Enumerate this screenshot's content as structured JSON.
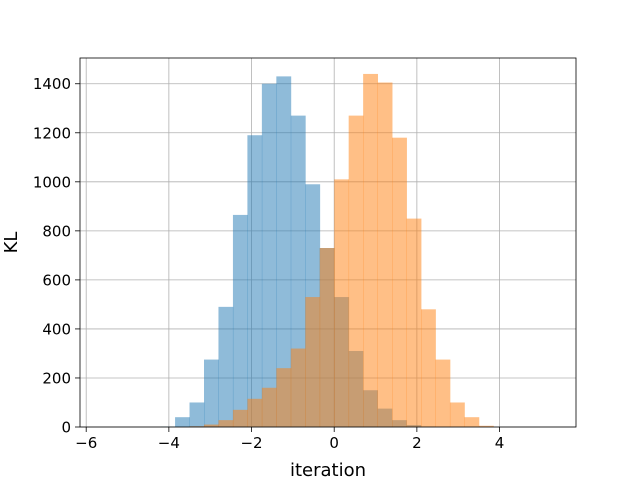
{
  "chart_data": {
    "type": "histogram",
    "xlabel": "iteration",
    "ylabel": "KL",
    "xlim": [
      -6.15,
      5.85
    ],
    "ylim": [
      0,
      1505
    ],
    "grid": true,
    "xticks": [
      -6,
      -4,
      -2,
      0,
      2,
      4
    ],
    "yticks": [
      0,
      200,
      400,
      600,
      800,
      1000,
      1200,
      1400
    ],
    "bin_width": 0.35,
    "series": [
      {
        "color": "#1f77b4",
        "alpha": 0.5,
        "bin_start": -4.2,
        "counts": [
          2,
          40,
          100,
          275,
          490,
          865,
          1190,
          1400,
          1430,
          1270,
          990,
          730,
          530,
          310,
          150,
          75,
          28,
          8,
          2
        ]
      },
      {
        "color": "#ff7f0e",
        "alpha": 0.5,
        "bin_start": -3.5,
        "counts": [
          3,
          10,
          28,
          70,
          115,
          160,
          240,
          320,
          530,
          730,
          1010,
          1270,
          1440,
          1405,
          1180,
          850,
          480,
          275,
          100,
          40,
          5
        ]
      }
    ]
  }
}
